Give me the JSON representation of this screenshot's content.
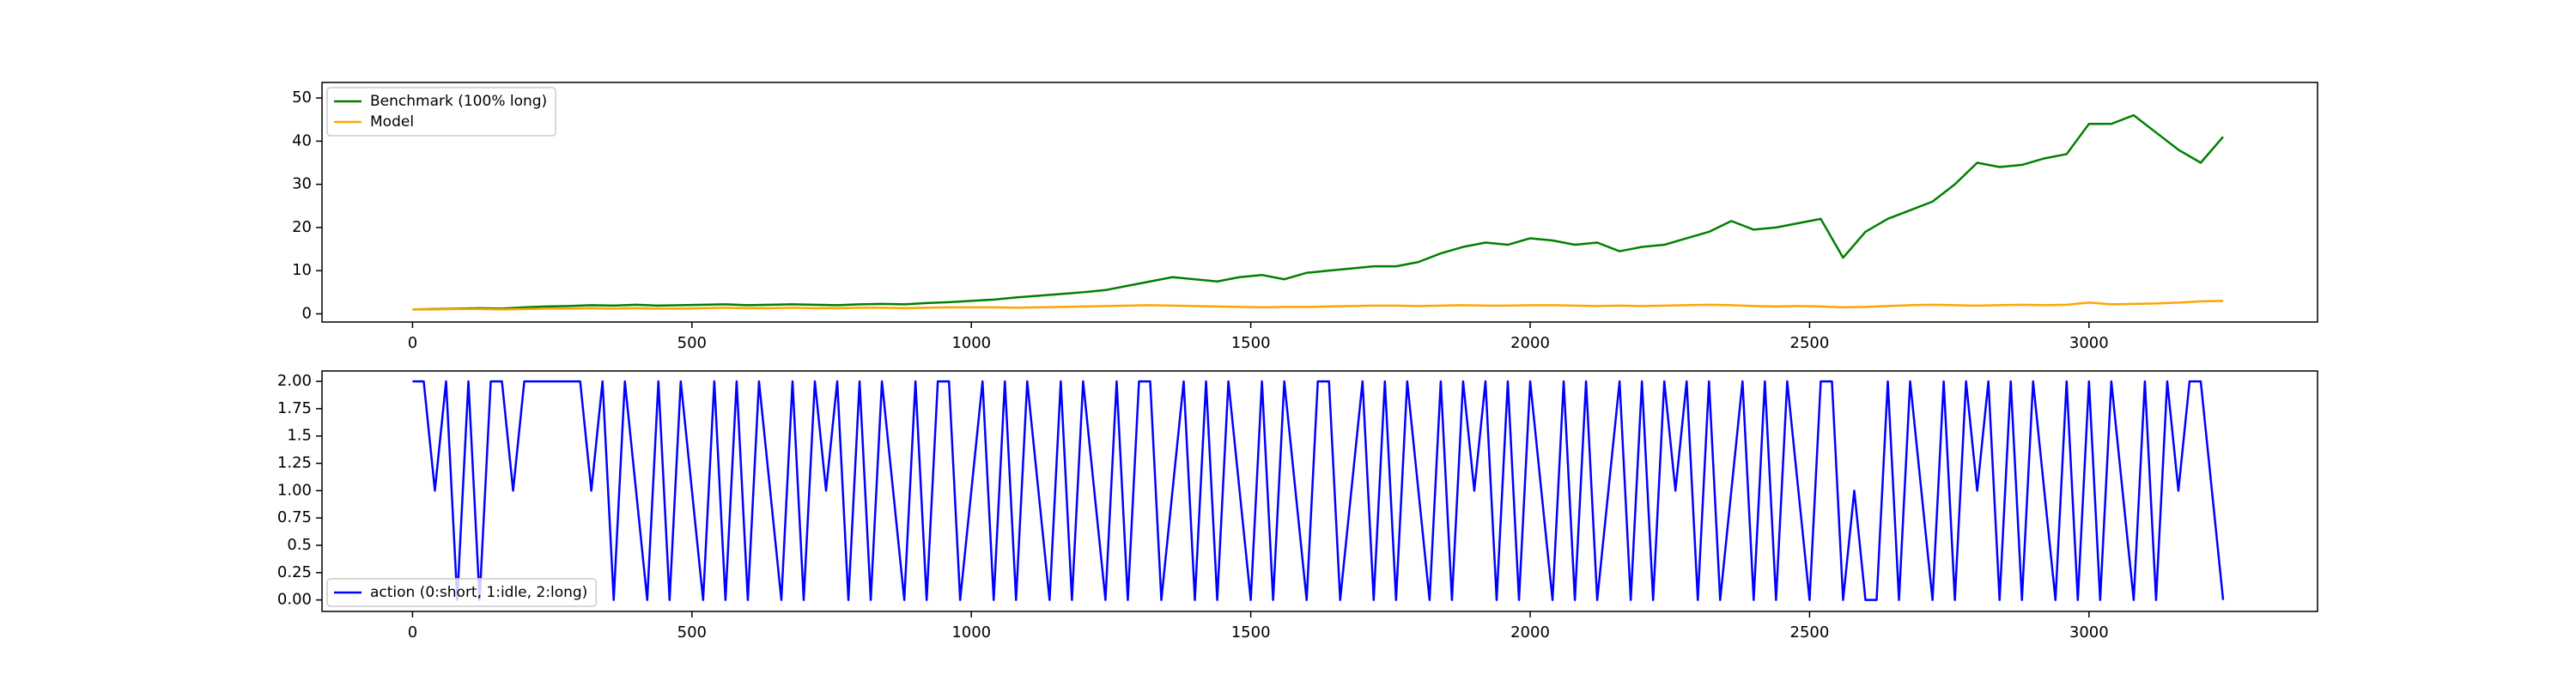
{
  "chart_data": [
    {
      "type": "line",
      "legend": "upper left",
      "xlim": [
        -162,
        3409
      ],
      "xticks": [
        0,
        500,
        1000,
        1500,
        2000,
        2500,
        3000
      ],
      "ylim": [
        -1.9,
        53.6
      ],
      "yticks": [
        0,
        10,
        20,
        30,
        40,
        50
      ],
      "x": [
        0,
        40,
        80,
        120,
        160,
        200,
        240,
        280,
        320,
        360,
        400,
        440,
        480,
        520,
        560,
        600,
        640,
        680,
        720,
        760,
        800,
        840,
        880,
        920,
        960,
        1000,
        1040,
        1080,
        1120,
        1160,
        1200,
        1240,
        1280,
        1320,
        1360,
        1400,
        1440,
        1480,
        1520,
        1560,
        1600,
        1640,
        1680,
        1720,
        1760,
        1800,
        1840,
        1880,
        1920,
        1960,
        2000,
        2040,
        2080,
        2120,
        2160,
        2200,
        2240,
        2280,
        2320,
        2360,
        2400,
        2440,
        2480,
        2520,
        2560,
        2600,
        2640,
        2680,
        2720,
        2760,
        2800,
        2840,
        2880,
        2920,
        2960,
        3000,
        3040,
        3080,
        3120,
        3160,
        3200,
        3240
      ],
      "series": [
        {
          "name": "Benchmark (100% long)",
          "color": "#008000",
          "values": [
            1.0,
            1.1,
            1.2,
            1.3,
            1.2,
            1.5,
            1.7,
            1.8,
            2.0,
            1.9,
            2.1,
            1.9,
            2.0,
            2.1,
            2.2,
            2.0,
            2.1,
            2.2,
            2.1,
            2.0,
            2.2,
            2.3,
            2.2,
            2.5,
            2.7,
            3.0,
            3.3,
            3.8,
            4.2,
            4.6,
            5.0,
            5.5,
            6.5,
            7.5,
            8.5,
            8.0,
            7.5,
            8.5,
            9.0,
            8.0,
            9.5,
            10.0,
            10.5,
            11.0,
            11.0,
            12.0,
            14.0,
            15.5,
            16.5,
            16.0,
            17.5,
            17.0,
            16.0,
            16.5,
            14.5,
            15.5,
            16.0,
            17.5,
            19.0,
            21.5,
            19.5,
            20.0,
            21.0,
            22.0,
            13.0,
            19.0,
            22.0,
            24.0,
            26.0,
            30.0,
            35.0,
            34.0,
            34.5,
            36.0,
            37.0,
            44.0,
            44.0,
            46.0,
            42.0,
            38.0,
            35.0,
            41.0
          ]
        },
        {
          "name": "Model",
          "color": "#ffa500",
          "values": [
            1.0,
            1.0,
            1.1,
            1.1,
            1.0,
            1.1,
            1.2,
            1.2,
            1.3,
            1.2,
            1.3,
            1.2,
            1.2,
            1.3,
            1.4,
            1.3,
            1.3,
            1.4,
            1.3,
            1.3,
            1.4,
            1.4,
            1.3,
            1.4,
            1.5,
            1.5,
            1.5,
            1.4,
            1.5,
            1.6,
            1.7,
            1.8,
            1.9,
            2.0,
            1.9,
            1.8,
            1.7,
            1.6,
            1.5,
            1.6,
            1.6,
            1.7,
            1.8,
            1.9,
            1.9,
            1.8,
            1.9,
            2.0,
            1.9,
            1.9,
            2.0,
            2.0,
            1.9,
            1.8,
            1.9,
            1.8,
            1.9,
            2.0,
            2.1,
            2.0,
            1.8,
            1.7,
            1.8,
            1.7,
            1.5,
            1.6,
            1.8,
            2.0,
            2.1,
            2.0,
            1.9,
            2.0,
            2.1,
            2.0,
            2.1,
            2.6,
            2.2,
            2.3,
            2.4,
            2.6,
            2.9,
            3.0
          ]
        }
      ]
    },
    {
      "type": "line",
      "legend": "lower left",
      "xlim": [
        -162,
        3409
      ],
      "xticks": [
        0,
        500,
        1000,
        1500,
        2000,
        2500,
        3000
      ],
      "ylim": [
        -0.105,
        2.095
      ],
      "yticks": [
        {
          "value": 0,
          "label": "0.00"
        },
        0.25,
        0.5,
        0.75,
        {
          "value": 1,
          "label": "1.00"
        },
        1.25,
        1.5,
        1.75,
        {
          "value": 2,
          "label": "2.00"
        }
      ],
      "x": [
        0,
        20,
        40,
        60,
        80,
        100,
        120,
        140,
        160,
        180,
        200,
        220,
        240,
        260,
        280,
        300,
        320,
        340,
        360,
        380,
        400,
        420,
        440,
        460,
        480,
        500,
        520,
        540,
        560,
        580,
        600,
        620,
        640,
        660,
        680,
        700,
        720,
        740,
        760,
        780,
        800,
        820,
        840,
        860,
        880,
        900,
        920,
        940,
        960,
        980,
        1000,
        1020,
        1040,
        1060,
        1080,
        1100,
        1120,
        1140,
        1160,
        1180,
        1200,
        1220,
        1240,
        1260,
        1280,
        1300,
        1320,
        1340,
        1360,
        1380,
        1400,
        1420,
        1440,
        1460,
        1480,
        1500,
        1520,
        1540,
        1560,
        1580,
        1600,
        1620,
        1640,
        1660,
        1680,
        1700,
        1720,
        1740,
        1760,
        1780,
        1800,
        1820,
        1840,
        1860,
        1880,
        1900,
        1920,
        1940,
        1960,
        1980,
        2000,
        2020,
        2040,
        2060,
        2080,
        2100,
        2120,
        2140,
        2160,
        2180,
        2200,
        2220,
        2240,
        2260,
        2280,
        2300,
        2320,
        2340,
        2360,
        2380,
        2400,
        2420,
        2440,
        2460,
        2480,
        2500,
        2520,
        2540,
        2560,
        2580,
        2600,
        2620,
        2640,
        2660,
        2680,
        2700,
        2720,
        2740,
        2760,
        2780,
        2800,
        2820,
        2840,
        2860,
        2880,
        2900,
        2920,
        2940,
        2960,
        2980,
        3000,
        3020,
        3040,
        3060,
        3080,
        3100,
        3120,
        3140,
        3160,
        3180,
        3200,
        3220,
        3240
      ],
      "series": [
        {
          "name": "action (0:short, 1:idle, 2:long)",
          "color": "#0000ff",
          "values": [
            2,
            2,
            1,
            2,
            0,
            2,
            0,
            2,
            2,
            1,
            2,
            2,
            2,
            2,
            2,
            2,
            1,
            2,
            0,
            2,
            1,
            0,
            2,
            0,
            2,
            1,
            0,
            2,
            0,
            2,
            0,
            2,
            1,
            0,
            2,
            0,
            2,
            1,
            2,
            0,
            2,
            0,
            2,
            1,
            0,
            2,
            0,
            2,
            2,
            0,
            1,
            2,
            0,
            2,
            0,
            2,
            1,
            0,
            2,
            0,
            2,
            1,
            0,
            2,
            0,
            2,
            2,
            0,
            1,
            2,
            0,
            2,
            0,
            2,
            1,
            0,
            2,
            0,
            2,
            1,
            0,
            2,
            2,
            0,
            1,
            2,
            0,
            2,
            0,
            2,
            1,
            0,
            2,
            0,
            2,
            1,
            2,
            0,
            2,
            0,
            2,
            1,
            0,
            2,
            0,
            2,
            0,
            1,
            2,
            0,
            2,
            0,
            2,
            1,
            2,
            0,
            2,
            0,
            1,
            2,
            0,
            2,
            0,
            2,
            1,
            0,
            2,
            2,
            0,
            1,
            0,
            0,
            2,
            0,
            2,
            1,
            0,
            2,
            0,
            2,
            1,
            2,
            0,
            2,
            0,
            2,
            1,
            0,
            2,
            0,
            2,
            0,
            2,
            1,
            0,
            2,
            0,
            2,
            1,
            2,
            2,
            1,
            0
          ]
        }
      ]
    }
  ]
}
